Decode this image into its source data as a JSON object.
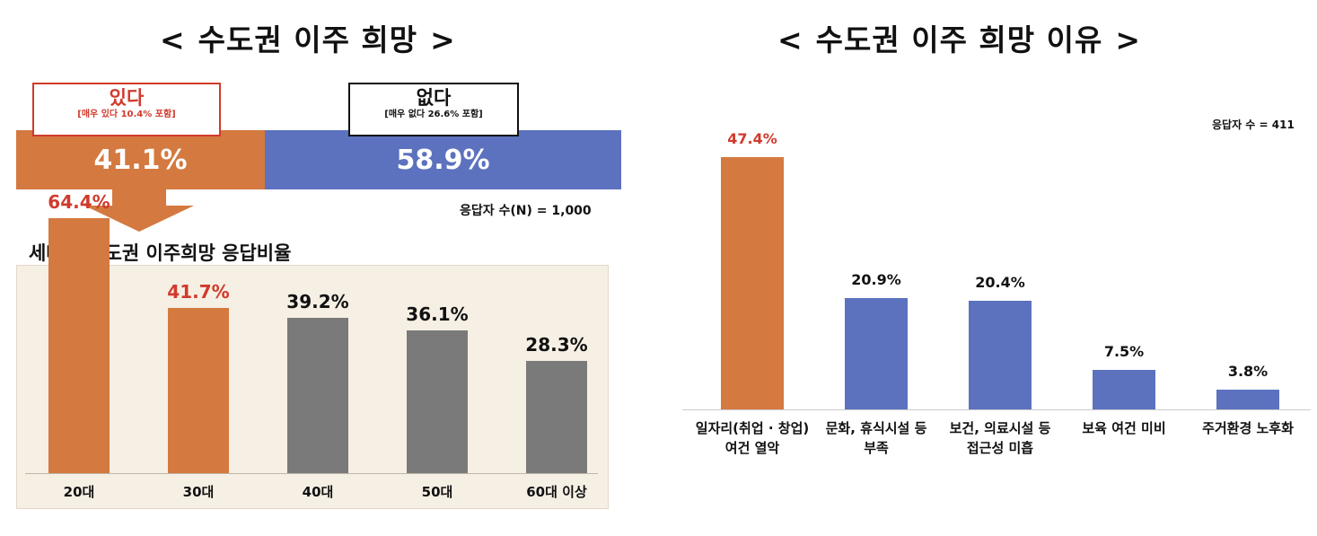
{
  "left": {
    "title": "수도권 이주 희망",
    "title_open": "<",
    "title_close": ">",
    "yes": {
      "label": "있다",
      "sub": "[매우 있다 10.4% 포함]",
      "value_text": "41.1%",
      "value": 41.1,
      "color": "#d4793f",
      "border_color": "#d03a2c",
      "label_color": "#d03a2c"
    },
    "no": {
      "label": "없다",
      "sub": "[매우 없다 26.6% 포함]",
      "value_text": "58.9%",
      "value": 58.9,
      "color": "#5c72bf",
      "border_color": "#111111",
      "label_color": "#111111"
    },
    "respondents": "응답자 수(N) = 1,000",
    "subtitle": "세대별 수도권 이주희망 응답비율"
  },
  "right": {
    "title": "수도권 이주 희망 이유",
    "title_open": "<",
    "title_close": ">",
    "respondents": "응답자 수 = 411"
  },
  "chart_data": [
    {
      "type": "bar",
      "categories": [
        "20대",
        "30대",
        "40대",
        "50대",
        "60대 이상"
      ],
      "values": [
        64.4,
        41.7,
        39.2,
        36.1,
        28.3
      ],
      "value_labels": [
        "64.4%",
        "41.7%",
        "39.2%",
        "36.1%",
        "28.3%"
      ],
      "bar_colors": [
        "#d4793f",
        "#d4793f",
        "#7a7a7a",
        "#7a7a7a",
        "#7a7a7a"
      ],
      "label_colors": [
        "#d03a2c",
        "#d03a2c",
        "#111111",
        "#111111",
        "#111111"
      ],
      "ylim": [
        0,
        70
      ]
    },
    {
      "type": "bar",
      "categories": [
        "일자리(취업 · 창업)\n여건 열악",
        "문화, 휴식시설 등\n부족",
        "보건, 의료시설 등\n접근성 미흡",
        "보육 여건 미비",
        "주거환경 노후화"
      ],
      "values": [
        47.4,
        20.9,
        20.4,
        7.5,
        3.8
      ],
      "value_labels": [
        "47.4%",
        "20.9%",
        "20.4%",
        "7.5%",
        "3.8%"
      ],
      "bar_colors": [
        "#d4793f",
        "#5c72bf",
        "#5c72bf",
        "#5c72bf",
        "#5c72bf"
      ],
      "label_colors": [
        "#d03a2c",
        "#111111",
        "#111111",
        "#111111",
        "#111111"
      ],
      "ylim": [
        0,
        50
      ]
    }
  ]
}
